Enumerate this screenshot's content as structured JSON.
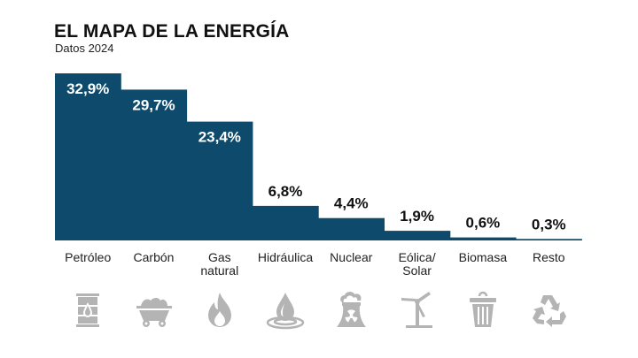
{
  "chart_data": {
    "type": "bar",
    "title": "EL MAPA DE LA ENERGÍA",
    "subtitle": "Datos 2024",
    "xlabel": "",
    "ylabel": "",
    "ylim": [
      0,
      33
    ],
    "grid": false,
    "legend": "none",
    "categories": [
      "Petróleo",
      "Carbón",
      "Gas natural",
      "Hidráulica",
      "Nuclear",
      "Eólica/ Solar",
      "Biomasa",
      "Resto"
    ],
    "category_lines": [
      [
        "Petróleo"
      ],
      [
        "Carbón"
      ],
      [
        "Gas",
        "natural"
      ],
      [
        "Hidráulica"
      ],
      [
        "Nuclear"
      ],
      [
        "Eólica/",
        "Solar"
      ],
      [
        "Biomasa"
      ],
      [
        "Resto"
      ]
    ],
    "values": [
      32.9,
      29.7,
      23.4,
      6.8,
      4.4,
      1.9,
      0.6,
      0.3
    ],
    "data_labels": [
      "32,9%",
      "29,7%",
      "23,4%",
      "6,8%",
      "4,4%",
      "1,9%",
      "0,6%",
      "0,3%"
    ],
    "icons": [
      "oil-barrel-icon",
      "coal-cart-icon",
      "gas-flame-icon",
      "water-drop-icon",
      "nuclear-plant-icon",
      "wind-turbine-icon",
      "trash-bin-icon",
      "recycle-icon"
    ],
    "colors": {
      "bar": "#0d4a6b",
      "label_inside": "#ffffff",
      "label_outside": "#111111",
      "icon": "#b4b4b4"
    }
  }
}
